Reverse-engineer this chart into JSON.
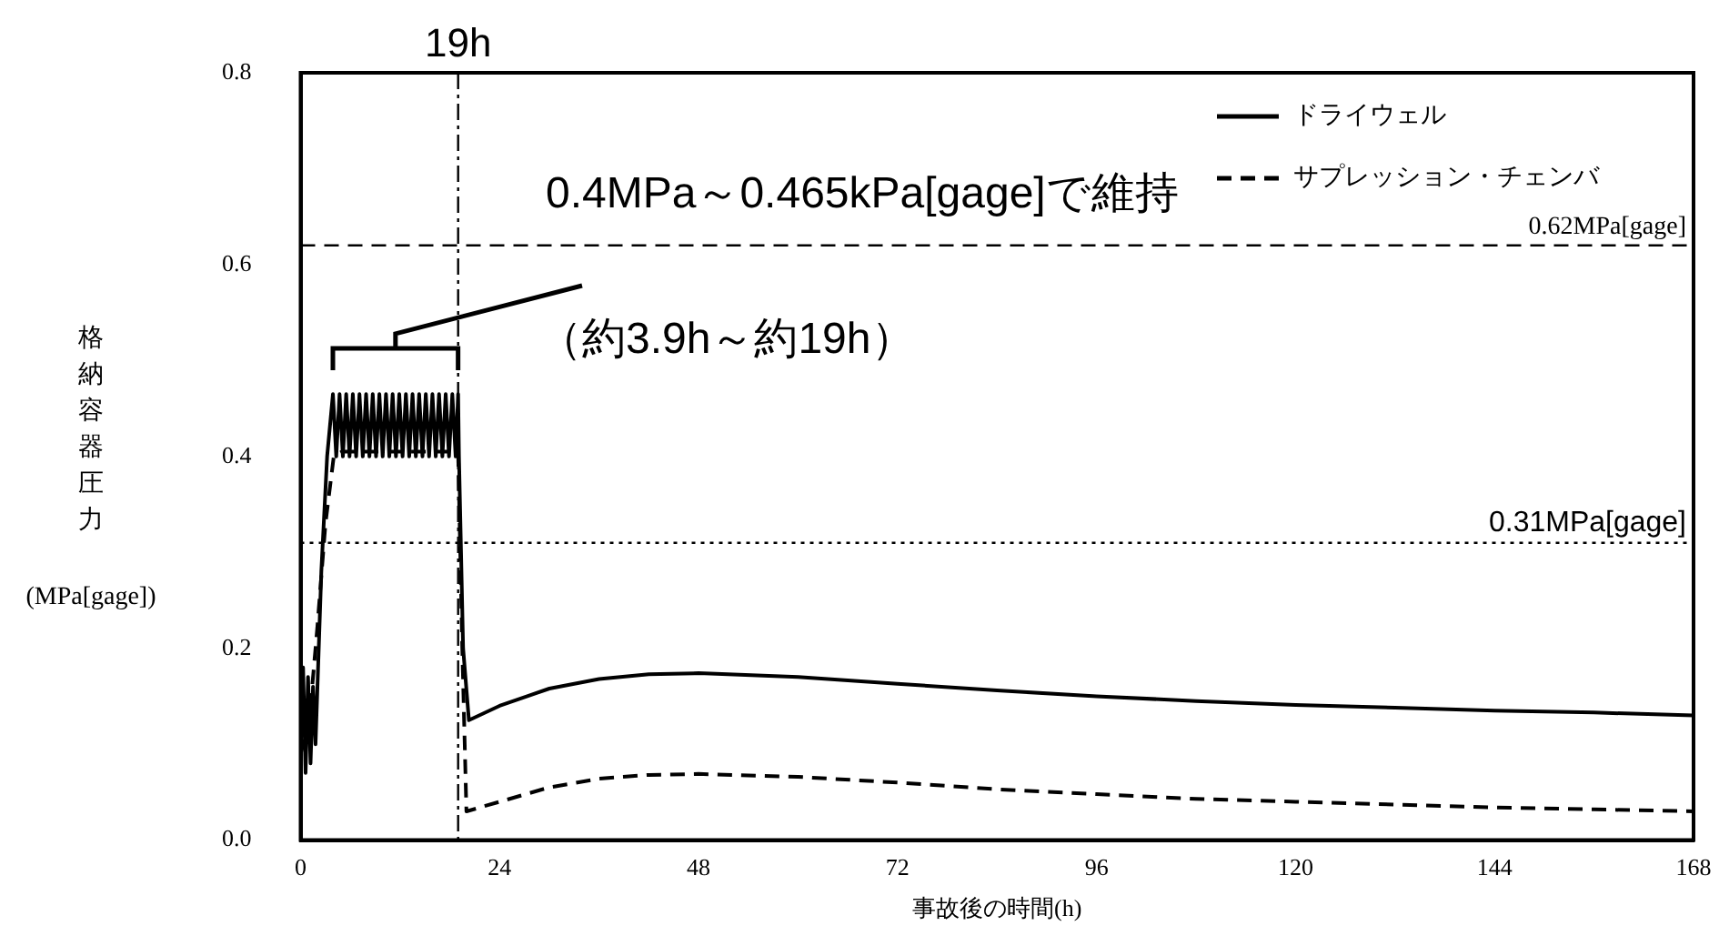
{
  "chart_data": {
    "type": "line",
    "xlabel": "事故後の時間(h)",
    "ylabel": "格納容器圧力(MPa[gage])",
    "xlim": [
      0,
      168
    ],
    "xticks": [
      0,
      24,
      48,
      72,
      96,
      120,
      144,
      168
    ],
    "ylim": [
      0,
      0.8
    ],
    "yticks": [
      {
        "value": 0,
        "label": "0.0"
      },
      0.2,
      0.4,
      0.6,
      0.8
    ],
    "grid": false,
    "legend": "top right",
    "marker": "none",
    "series": [
      {
        "name": "ドライウェル",
        "color": "#000000",
        "line_style": "solid",
        "x": [
          0,
          0.3,
          0.6,
          0.9,
          1.2,
          1.5,
          1.8,
          2.5,
          3.2,
          3.9,
          4.3,
          4.7,
          5.1,
          5.5,
          5.9,
          6.3,
          6.7,
          7.1,
          7.5,
          7.9,
          8.3,
          8.7,
          9.1,
          9.5,
          9.9,
          10.3,
          10.7,
          11.1,
          11.5,
          11.9,
          12.3,
          12.7,
          13.1,
          13.5,
          13.9,
          14.3,
          14.7,
          15.1,
          15.5,
          15.9,
          16.3,
          16.7,
          17.1,
          17.5,
          17.9,
          18.3,
          18.7,
          19.0,
          19.1,
          19.6,
          20.3,
          24,
          30,
          36,
          42,
          48,
          60,
          72,
          84,
          96,
          108,
          120,
          132,
          144,
          156,
          168
        ],
        "values": [
          0.1,
          0.18,
          0.07,
          0.17,
          0.08,
          0.16,
          0.1,
          0.28,
          0.4,
          0.465,
          0.4,
          0.465,
          0.4,
          0.465,
          0.4,
          0.465,
          0.4,
          0.465,
          0.4,
          0.465,
          0.4,
          0.465,
          0.4,
          0.465,
          0.4,
          0.465,
          0.4,
          0.465,
          0.4,
          0.465,
          0.4,
          0.465,
          0.4,
          0.465,
          0.4,
          0.465,
          0.4,
          0.465,
          0.4,
          0.465,
          0.4,
          0.465,
          0.4,
          0.465,
          0.4,
          0.465,
          0.4,
          0.465,
          0.4,
          0.2,
          0.125,
          0.14,
          0.158,
          0.168,
          0.173,
          0.174,
          0.17,
          0.163,
          0.156,
          0.15,
          0.145,
          0.141,
          0.138,
          0.135,
          0.133,
          0.13
        ]
      },
      {
        "name": "サプレッション・チェンバ",
        "color": "#000000",
        "line_style": "dashed",
        "x": [
          0,
          1,
          2,
          3,
          4,
          5,
          10,
          15,
          19,
          19.5,
          20,
          24,
          30,
          36,
          42,
          48,
          60,
          72,
          84,
          96,
          108,
          120,
          132,
          144,
          156,
          168
        ],
        "values": [
          0.09,
          0.12,
          0.22,
          0.33,
          0.4,
          0.405,
          0.405,
          0.405,
          0.405,
          0.2,
          0.03,
          0.04,
          0.055,
          0.064,
          0.068,
          0.069,
          0.066,
          0.06,
          0.053,
          0.048,
          0.043,
          0.04,
          0.037,
          0.034,
          0.032,
          0.03
        ]
      }
    ],
    "ref_lines": [
      {
        "axis": "y",
        "value": 0.62,
        "label": "0.62MPa[gage]",
        "line_style": "dashed"
      },
      {
        "axis": "y",
        "value": 0.31,
        "label": "0.31MPa[gage]",
        "line_style": "dotted"
      },
      {
        "axis": "x",
        "value": 19,
        "label": "19h",
        "line_style": "dashdot"
      }
    ],
    "annotations": [
      "0.4MPa～0.465kPa[gage]で維持",
      "（約3.9h～約19h）"
    ]
  }
}
